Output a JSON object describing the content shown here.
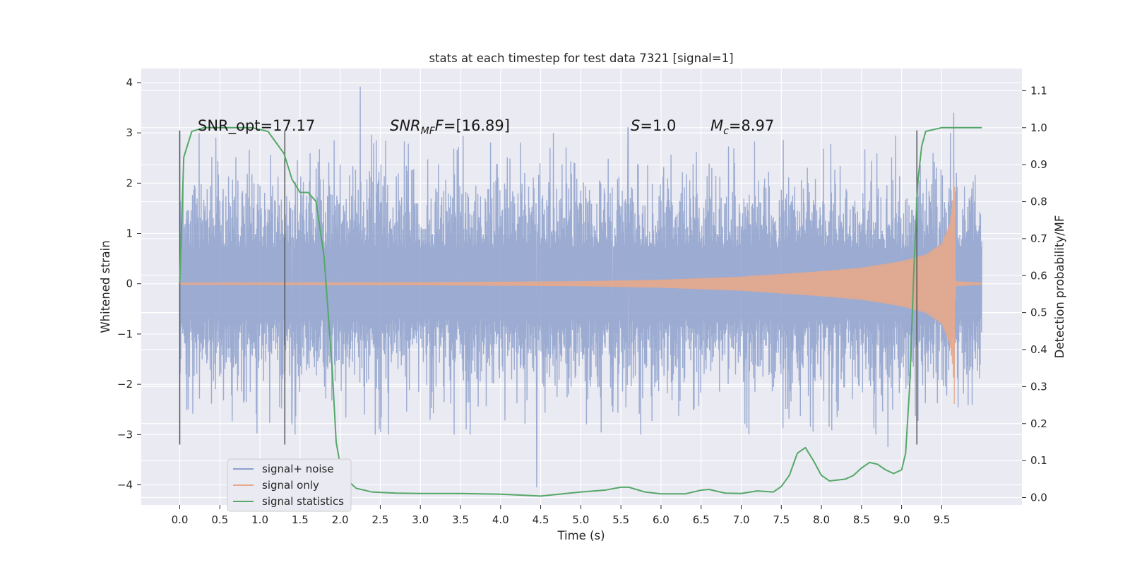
{
  "chart_data": {
    "type": "line",
    "title": "stats at each timestep for test data 7321 [signal=1]",
    "xlabel": "Time (s)",
    "ylabel": "Whitened strain",
    "y2label": "Detection probability/MF",
    "xlim": [
      -0.48,
      10.5
    ],
    "ylim": [
      -4.4,
      4.28
    ],
    "y2lim": [
      -0.02,
      1.16
    ],
    "xticks": [
      0.0,
      0.5,
      1.0,
      1.5,
      2.0,
      2.5,
      3.0,
      3.5,
      4.0,
      4.5,
      5.0,
      5.5,
      6.0,
      6.5,
      7.0,
      7.5,
      8.0,
      8.5,
      9.0,
      9.5
    ],
    "xtick_labels": [
      "0.0",
      "0.5",
      "1.0",
      "1.5",
      "2.0",
      "2.5",
      "3.0",
      "3.5",
      "4.0",
      "4.5",
      "5.0",
      "5.5",
      "6.0",
      "6.5",
      "7.0",
      "7.5",
      "8.0",
      "8.5",
      "9.0",
      "9.5"
    ],
    "yticks": [
      4,
      3,
      2,
      1,
      0,
      -1,
      -2,
      -3,
      -4
    ],
    "ytick_labels": [
      "4",
      "3",
      "2",
      "1",
      "0",
      "−1",
      "−2",
      "−3",
      "−4"
    ],
    "y2ticks": [
      1.1,
      1.0,
      0.9,
      0.8,
      0.7,
      0.6,
      0.5,
      0.4,
      0.3,
      0.2,
      0.1,
      0.0
    ],
    "y2tick_labels": [
      "1.1",
      "1.0",
      "0.9",
      "0.8",
      "0.7",
      "0.6",
      "0.5",
      "0.4",
      "0.3",
      "0.2",
      "0.1",
      "0.0"
    ],
    "grid": true,
    "legend_position": "lower-left",
    "annotations": {
      "snr_opt": "SNR_opt=17.17",
      "snr_mf_main": "SNR",
      "snr_mf_sub": "MF",
      "snr_mf_value": "=[16.89]",
      "s_main": "S",
      "s_value": "=1.0",
      "mc_main": "M",
      "mc_sub": "c",
      "mc_value": "=8.97"
    },
    "vertical_markers": [
      0.0,
      1.31,
      9.19
    ],
    "vertical_marker_range": [
      -3.2,
      3.05
    ],
    "series": [
      {
        "name": "signal+ noise",
        "color": "#8da0cb",
        "kind": "noise",
        "x_range": [
          0.0,
          10.0
        ],
        "typical_amplitude": 1.55,
        "notable_peaks": [
          [
            2.25,
            3.92
          ],
          [
            2.45,
            2.85
          ],
          [
            5.59,
            3.1
          ],
          [
            9.65,
            3.4
          ],
          [
            4.45,
            -4.05
          ],
          [
            8.83,
            -3.25
          ],
          [
            1.4,
            -2.8
          ],
          [
            5.4,
            -2.55
          ]
        ]
      },
      {
        "name": "signal only",
        "color": "#e8a98a",
        "kind": "chirp",
        "envelope": [
          [
            0.0,
            0.02
          ],
          [
            3.0,
            0.03
          ],
          [
            5.0,
            0.05
          ],
          [
            6.0,
            0.08
          ],
          [
            7.0,
            0.14
          ],
          [
            8.0,
            0.25
          ],
          [
            8.5,
            0.32
          ],
          [
            9.0,
            0.45
          ],
          [
            9.3,
            0.58
          ],
          [
            9.5,
            0.8
          ],
          [
            9.6,
            1.2
          ],
          [
            9.64,
            1.7
          ],
          [
            9.66,
            2.55
          ],
          [
            9.67,
            0.05
          ],
          [
            10.0,
            0.02
          ]
        ]
      },
      {
        "name": "signal statistics",
        "color": "#55a868",
        "kind": "line",
        "points": [
          [
            0.0,
            0.58
          ],
          [
            0.05,
            0.92
          ],
          [
            0.15,
            0.99
          ],
          [
            0.3,
            1.0
          ],
          [
            0.9,
            1.0
          ],
          [
            1.1,
            0.99
          ],
          [
            1.2,
            0.96
          ],
          [
            1.3,
            0.93
          ],
          [
            1.4,
            0.86
          ],
          [
            1.5,
            0.825
          ],
          [
            1.6,
            0.825
          ],
          [
            1.7,
            0.8
          ],
          [
            1.8,
            0.65
          ],
          [
            1.9,
            0.35
          ],
          [
            1.95,
            0.15
          ],
          [
            2.0,
            0.09
          ],
          [
            2.1,
            0.045
          ],
          [
            2.2,
            0.025
          ],
          [
            2.4,
            0.015
          ],
          [
            2.7,
            0.012
          ],
          [
            3.0,
            0.011
          ],
          [
            3.5,
            0.011
          ],
          [
            4.0,
            0.009
          ],
          [
            4.5,
            0.004
          ],
          [
            5.0,
            0.015
          ],
          [
            5.3,
            0.02
          ],
          [
            5.5,
            0.028
          ],
          [
            5.6,
            0.028
          ],
          [
            5.8,
            0.015
          ],
          [
            6.0,
            0.01
          ],
          [
            6.3,
            0.01
          ],
          [
            6.5,
            0.02
          ],
          [
            6.6,
            0.022
          ],
          [
            6.8,
            0.012
          ],
          [
            7.0,
            0.011
          ],
          [
            7.2,
            0.018
          ],
          [
            7.4,
            0.015
          ],
          [
            7.5,
            0.03
          ],
          [
            7.6,
            0.06
          ],
          [
            7.7,
            0.12
          ],
          [
            7.8,
            0.135
          ],
          [
            7.9,
            0.1
          ],
          [
            8.0,
            0.06
          ],
          [
            8.1,
            0.045
          ],
          [
            8.3,
            0.05
          ],
          [
            8.4,
            0.06
          ],
          [
            8.5,
            0.08
          ],
          [
            8.6,
            0.095
          ],
          [
            8.7,
            0.09
          ],
          [
            8.8,
            0.075
          ],
          [
            8.9,
            0.065
          ],
          [
            9.0,
            0.075
          ],
          [
            9.05,
            0.12
          ],
          [
            9.1,
            0.3
          ],
          [
            9.15,
            0.6
          ],
          [
            9.2,
            0.85
          ],
          [
            9.25,
            0.95
          ],
          [
            9.3,
            0.99
          ],
          [
            9.5,
            1.0
          ],
          [
            10.0,
            1.0
          ]
        ]
      }
    ]
  }
}
